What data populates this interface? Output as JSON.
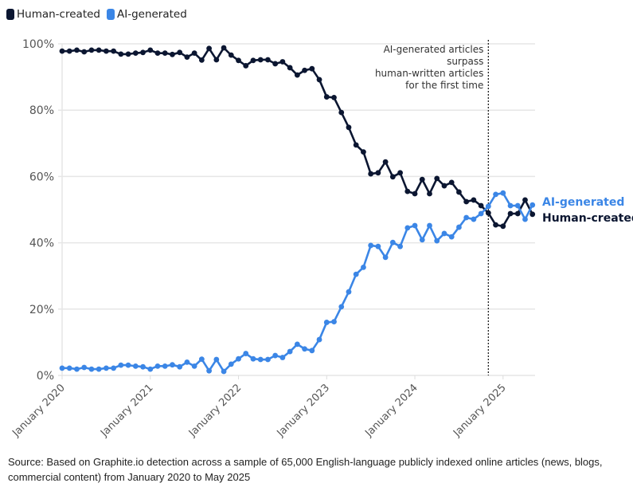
{
  "chart_data": {
    "type": "line",
    "title": "",
    "xlabel": "",
    "ylabel": "",
    "ylim": [
      0,
      100
    ],
    "y_ticks": [
      "0%",
      "20%",
      "40%",
      "60%",
      "80%",
      "100%"
    ],
    "y_tick_values": [
      0,
      20,
      40,
      60,
      80,
      100
    ],
    "x_ticks": [
      "January 2020",
      "January 2021",
      "January 2022",
      "January 2023",
      "January 2024",
      "January 2025"
    ],
    "x_start": "2020-01",
    "x_end": "2025-05",
    "x_frequency": "monthly",
    "grid": "horizontal",
    "legend_placement": "top-left",
    "series": [
      {
        "name": "Human-created",
        "color": "#0b1631",
        "values": [
          97.8,
          97.8,
          98.1,
          97.6,
          98.1,
          98.1,
          97.8,
          97.8,
          96.9,
          96.9,
          97.2,
          97.4,
          98.1,
          97.2,
          97.2,
          96.8,
          97.4,
          96.0,
          97.2,
          95.1,
          98.6,
          95.2,
          98.8,
          96.6,
          95.0,
          93.4,
          95.0,
          95.2,
          95.2,
          94.0,
          94.6,
          92.8,
          90.6,
          92.0,
          92.5,
          89.2,
          84.0,
          83.8,
          79.3,
          74.8,
          69.5,
          67.4,
          60.8,
          61.1,
          64.4,
          59.9,
          61.1,
          55.5,
          54.8,
          59.1,
          54.8,
          59.4,
          57.2,
          58.2,
          55.3,
          52.4,
          52.9,
          51.2,
          49.0,
          45.4,
          45.0,
          48.8,
          48.8,
          52.9,
          48.6
        ]
      },
      {
        "name": "AI-generated",
        "color": "#3b86e6",
        "values": [
          2.2,
          2.2,
          1.9,
          2.4,
          1.9,
          1.9,
          2.2,
          2.2,
          3.1,
          3.1,
          2.8,
          2.6,
          1.9,
          2.8,
          2.8,
          3.2,
          2.6,
          4.0,
          2.8,
          4.9,
          1.4,
          4.8,
          1.2,
          3.4,
          5.0,
          6.6,
          5.0,
          4.8,
          4.8,
          6.0,
          5.4,
          7.2,
          9.4,
          8.0,
          7.5,
          10.8,
          16.0,
          16.2,
          20.7,
          25.2,
          30.5,
          32.6,
          39.2,
          38.9,
          35.6,
          40.1,
          38.9,
          44.5,
          45.2,
          40.9,
          45.2,
          40.6,
          42.8,
          41.8,
          44.7,
          47.6,
          47.1,
          48.8,
          51.0,
          54.6,
          55.0,
          51.2,
          51.2,
          47.1,
          51.4
        ]
      }
    ],
    "annotation": {
      "lines": [
        "AI-generated articles",
        "surpass",
        "human-written articles",
        "for the first time"
      ],
      "at": "2024-11"
    },
    "end_labels": {
      "ai": "AI-generated",
      "human": "Human-created"
    }
  },
  "legend": [
    {
      "label": "Human-created",
      "color": "#0b1631"
    },
    {
      "label": "AI-generated",
      "color": "#3b86e6"
    }
  ],
  "footer": "Source: Based on Graphite.io detection across a sample of 65,000 English-language publicly indexed online articles (news, blogs, commercial content) from January 2020 to May 2025"
}
